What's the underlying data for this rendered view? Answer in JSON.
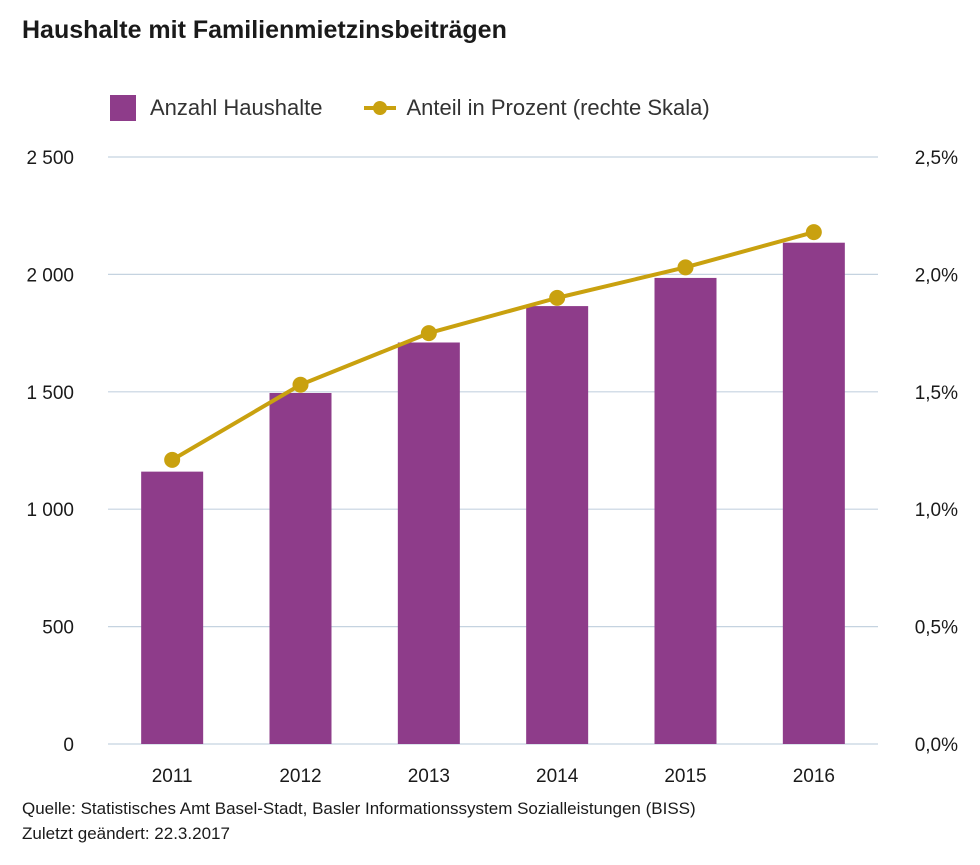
{
  "title": "Haushalte mit Familienmietzinsbeiträgen",
  "legend": {
    "bar_label": "Anzahl Haushalte",
    "line_label": "Anteil in Prozent (rechte Skala)"
  },
  "colors": {
    "bar": "#8e3c8a",
    "line": "#c9a10f",
    "grid": "#c5d3e0"
  },
  "footer": {
    "source": "Quelle: Statistisches Amt Basel-Stadt, Basler Informationssystem Sozialleistungen (BISS)",
    "updated": "Zuletzt geändert: 22.3.2017"
  },
  "chart_data": {
    "type": "bar",
    "categories": [
      "2011",
      "2012",
      "2013",
      "2014",
      "2015",
      "2016"
    ],
    "series": [
      {
        "name": "Anzahl Haushalte",
        "type": "bar",
        "axis": "left",
        "values": [
          1160,
          1495,
          1710,
          1865,
          1985,
          2135
        ]
      },
      {
        "name": "Anteil in Prozent (rechte Skala)",
        "type": "line",
        "axis": "right",
        "values": [
          1.21,
          1.53,
          1.75,
          1.9,
          2.03,
          2.18
        ]
      }
    ],
    "y_left": {
      "ylim": [
        0,
        2500
      ],
      "ticks": [
        0,
        500,
        1000,
        1500,
        2000,
        2500
      ],
      "tick_labels": [
        "0",
        "500",
        "1 000",
        "1 500",
        "2 000",
        "2 500"
      ]
    },
    "y_right": {
      "ylim": [
        0,
        2.5
      ],
      "ticks": [
        0,
        0.5,
        1.0,
        1.5,
        2.0,
        2.5
      ],
      "tick_labels": [
        "0,0%",
        "0,5%",
        "1,0%",
        "1,5%",
        "2,0%",
        "2,5%"
      ]
    },
    "grid": true,
    "legend_position": "top-left"
  }
}
